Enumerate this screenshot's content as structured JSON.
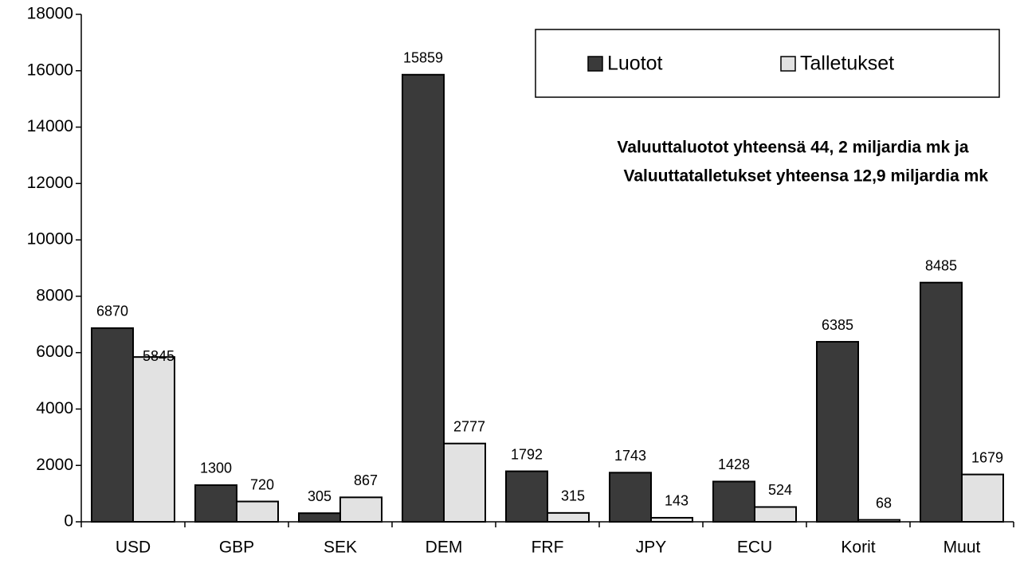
{
  "chart_data": {
    "type": "bar",
    "categories": [
      "USD",
      "GBP",
      "SEK",
      "DEM",
      "FRF",
      "JPY",
      "ECU",
      "Korit",
      "Muut"
    ],
    "series": [
      {
        "name": "Luotot",
        "color": "#3a3a3a",
        "values": [
          6870,
          1300,
          305,
          15859,
          1792,
          1743,
          1428,
          6385,
          8485
        ]
      },
      {
        "name": "Talletukset",
        "color": "#e2e2e2",
        "values": [
          5845,
          720,
          867,
          2777,
          315,
          143,
          524,
          68,
          1679
        ]
      }
    ],
    "annotations": [
      "Valuuttaluotot yhteensä 44, 2 miljardia mk ja",
      "Valuuttatalletukset yhteensa 12,9 miljardia mk"
    ],
    "ylim": [
      0,
      18000
    ],
    "yticks": [
      0,
      2000,
      4000,
      6000,
      8000,
      10000,
      12000,
      14000,
      16000,
      18000
    ],
    "legend": "upper right",
    "grid": false
  }
}
